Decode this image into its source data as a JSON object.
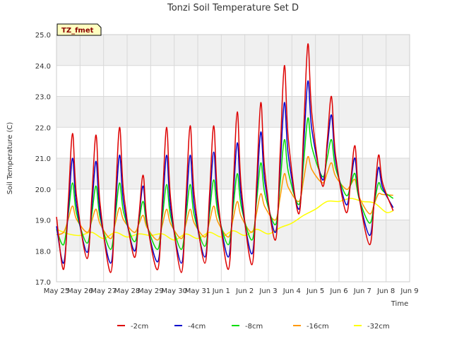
{
  "chart_data": {
    "type": "line",
    "title": "Tonzi Soil Temperature Set D",
    "xlabel": "Time",
    "ylabel": "Soil Temperature (C)",
    "tag": "TZ_fmet",
    "ylim": [
      17.0,
      25.0
    ],
    "yticks": [
      "17.0",
      "18.0",
      "19.0",
      "20.0",
      "21.0",
      "22.0",
      "23.0",
      "24.0",
      "25.0"
    ],
    "xlim": [
      0,
      15
    ],
    "xtick_labels": [
      "May 25",
      "May 26",
      "May 27",
      "May 28",
      "May 29",
      "May 30",
      "May 31",
      "Jun 1",
      "Jun 2",
      "Jun 3",
      "Jun 4",
      "Jun 5",
      "Jun 6",
      "Jun 7",
      "Jun 8",
      "Jun 9"
    ],
    "grid": true,
    "legend_position": "bottom",
    "series": [
      {
        "name": "-2cm",
        "color": "#dd0000",
        "min": [
          17.4,
          17.75,
          17.3,
          17.8,
          17.4,
          17.3,
          17.6,
          17.4,
          17.55,
          18.35,
          19.2,
          20.1,
          19.25,
          18.2
        ],
        "max": [
          21.8,
          21.75,
          22.0,
          20.45,
          22.0,
          22.05,
          22.05,
          22.5,
          22.8,
          24.0,
          24.7,
          23.0,
          21.4,
          21.1
        ],
        "end": 19.3
      },
      {
        "name": "-4cm",
        "color": "#0000cc",
        "min": [
          17.6,
          17.95,
          17.6,
          18.0,
          17.65,
          17.6,
          17.8,
          17.8,
          17.9,
          18.6,
          19.35,
          20.3,
          19.5,
          18.5
        ],
        "max": [
          21.0,
          20.9,
          21.1,
          20.1,
          21.1,
          21.1,
          21.2,
          21.5,
          21.85,
          22.8,
          23.5,
          22.4,
          21.0,
          20.7
        ],
        "end": 19.4
      },
      {
        "name": "-8cm",
        "color": "#00dd00",
        "min": [
          18.2,
          18.25,
          18.05,
          18.3,
          18.05,
          18.05,
          18.15,
          18.2,
          18.35,
          18.85,
          19.5,
          20.4,
          19.8,
          18.9
        ],
        "max": [
          20.2,
          20.1,
          20.2,
          19.6,
          20.15,
          20.15,
          20.3,
          20.5,
          20.85,
          21.6,
          22.3,
          21.6,
          20.5,
          20.2
        ],
        "end": 19.7
      },
      {
        "name": "-16cm",
        "color": "#ff9900",
        "min": [
          18.6,
          18.6,
          18.4,
          18.6,
          18.35,
          18.4,
          18.45,
          18.45,
          18.6,
          19.0,
          19.6,
          20.2,
          20.0,
          19.2
        ],
        "max": [
          19.45,
          19.35,
          19.4,
          19.15,
          19.35,
          19.35,
          19.45,
          19.6,
          19.85,
          20.5,
          21.05,
          20.85,
          20.3,
          19.85
        ],
        "end": 19.8
      },
      {
        "name": "-32cm",
        "color": "#ffff00",
        "points": [
          [
            0.0,
            18.7
          ],
          [
            0.5,
            18.55
          ],
          [
            1.0,
            18.5
          ],
          [
            1.5,
            18.6
          ],
          [
            2.0,
            18.4
          ],
          [
            2.5,
            18.6
          ],
          [
            3.0,
            18.45
          ],
          [
            3.5,
            18.55
          ],
          [
            4.0,
            18.5
          ],
          [
            4.5,
            18.55
          ],
          [
            5.0,
            18.35
          ],
          [
            5.5,
            18.55
          ],
          [
            6.0,
            18.4
          ],
          [
            6.5,
            18.6
          ],
          [
            7.0,
            18.45
          ],
          [
            7.5,
            18.65
          ],
          [
            8.0,
            18.5
          ],
          [
            8.5,
            18.7
          ],
          [
            9.0,
            18.55
          ],
          [
            9.5,
            18.75
          ],
          [
            10.0,
            18.9
          ],
          [
            10.5,
            19.15
          ],
          [
            11.0,
            19.35
          ],
          [
            11.5,
            19.6
          ],
          [
            12.0,
            19.6
          ],
          [
            12.5,
            19.7
          ],
          [
            13.0,
            19.6
          ],
          [
            13.5,
            19.55
          ],
          [
            14.0,
            19.25
          ],
          [
            14.3,
            19.3
          ]
        ]
      }
    ]
  }
}
